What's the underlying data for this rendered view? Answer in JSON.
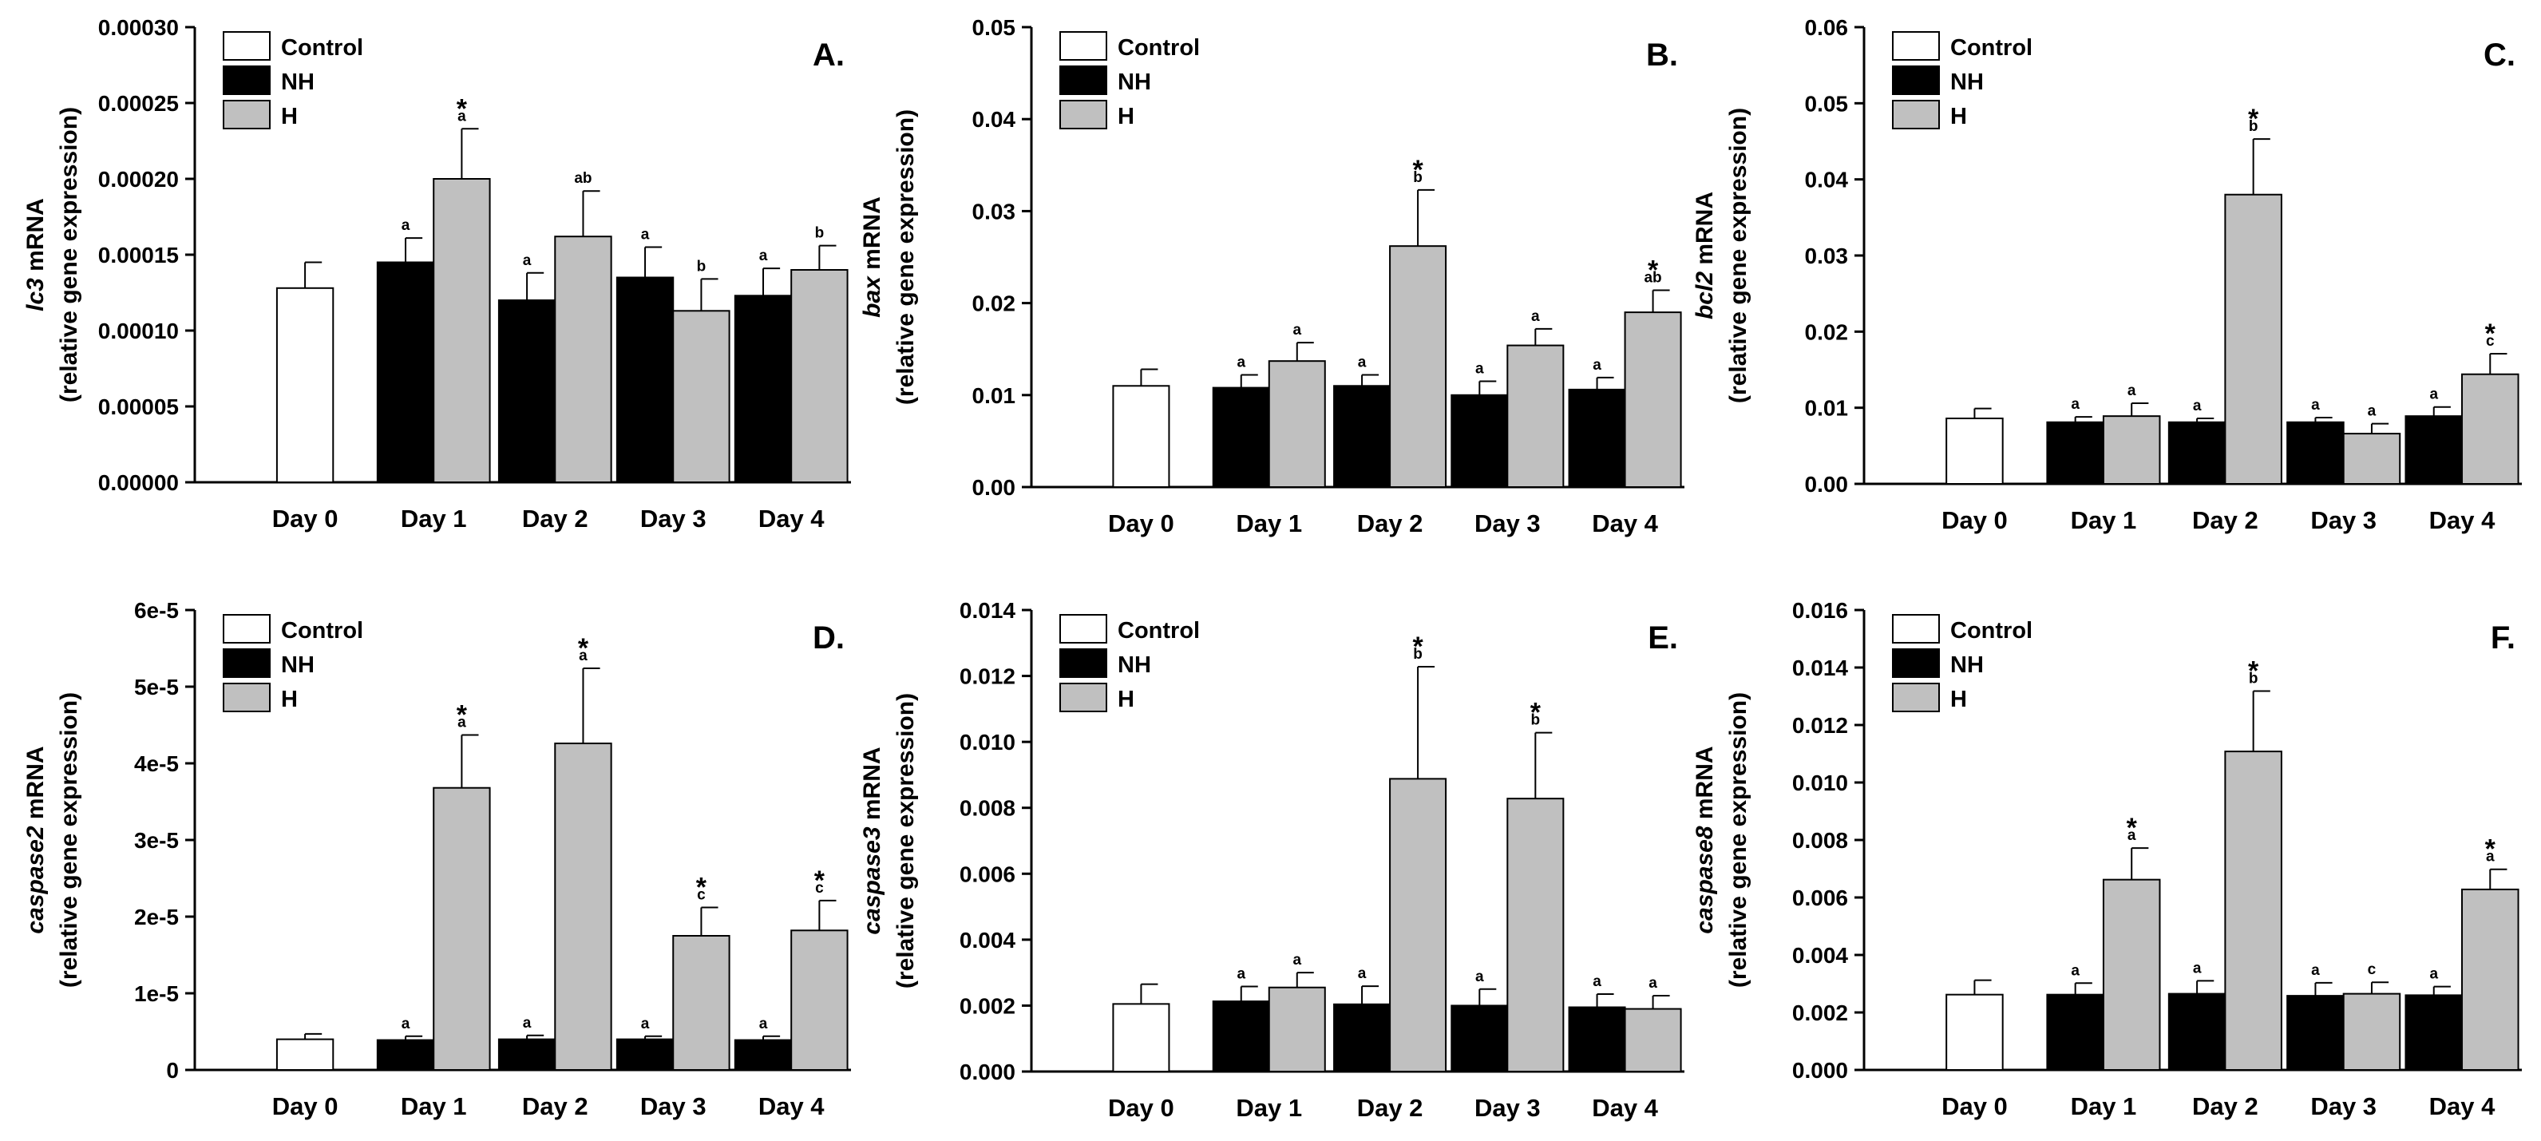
{
  "colors": {
    "control": "#ffffff",
    "NH": "#000000",
    "H": "#c0c0c0",
    "outline": "#000000"
  },
  "chart_data": [
    {
      "type": "bar",
      "panel": "A.",
      "gene": "lc3",
      "ylabel_suffix": " mRNA",
      "ylabel_sub": "(relative gene  expression)",
      "categories": [
        "Day 0",
        "Day 1",
        "Day 2",
        "Day 3",
        "Day 4"
      ],
      "ylim": [
        0,
        0.0003
      ],
      "yticks": [
        "0.00000",
        "0.00005",
        "0.00010",
        "0.00015",
        "0.00020",
        "0.00025",
        "0.00030"
      ],
      "legend": [
        "Control",
        "NH",
        "H"
      ],
      "series": [
        {
          "name": "Control",
          "values": [
            0.000128,
            null,
            null,
            null,
            null
          ],
          "errors": [
            1.7e-05,
            null,
            null,
            null,
            null
          ],
          "letters": [
            null,
            null,
            null,
            null,
            null
          ],
          "stars": [
            false,
            false,
            false,
            false,
            false
          ]
        },
        {
          "name": "NH",
          "values": [
            null,
            0.000145,
            0.00012,
            0.000135,
            0.000123
          ],
          "errors": [
            null,
            1.6e-05,
            1.8e-05,
            2e-05,
            1.8e-05
          ],
          "letters": [
            null,
            "a",
            "a",
            "a",
            "a"
          ],
          "stars": [
            false,
            false,
            false,
            false,
            false
          ]
        },
        {
          "name": "H",
          "values": [
            null,
            0.0002,
            0.000162,
            0.000113,
            0.00014
          ],
          "errors": [
            null,
            3.3e-05,
            3e-05,
            2.1e-05,
            1.6e-05
          ],
          "letters": [
            null,
            "a",
            "ab",
            "b",
            "b"
          ],
          "stars": [
            false,
            true,
            false,
            false,
            false
          ]
        }
      ]
    },
    {
      "type": "bar",
      "panel": "B.",
      "gene": "bax",
      "ylabel_suffix": " mRNA",
      "ylabel_sub": "(relative gene  expression)",
      "categories": [
        "Day 0",
        "Day 1",
        "Day 2",
        "Day 3",
        "Day 4"
      ],
      "ylim": [
        0,
        0.05
      ],
      "yticks": [
        "0.00",
        "0.01",
        "0.02",
        "0.03",
        "0.04",
        "0.05"
      ],
      "legend": [
        "Control",
        "NH",
        "H"
      ],
      "series": [
        {
          "name": "Control",
          "values": [
            0.011,
            null,
            null,
            null,
            null
          ],
          "errors": [
            0.0018,
            null,
            null,
            null,
            null
          ],
          "letters": [
            null,
            null,
            null,
            null,
            null
          ],
          "stars": [
            false,
            false,
            false,
            false,
            false
          ]
        },
        {
          "name": "NH",
          "values": [
            null,
            0.0108,
            0.011,
            0.01,
            0.0106
          ],
          "errors": [
            null,
            0.0014,
            0.0012,
            0.0015,
            0.0013
          ],
          "letters": [
            null,
            "a",
            "a",
            "a",
            "a"
          ],
          "stars": [
            false,
            false,
            false,
            false,
            false
          ]
        },
        {
          "name": "H",
          "values": [
            null,
            0.0137,
            0.0262,
            0.0154,
            0.019
          ],
          "errors": [
            null,
            0.002,
            0.0061,
            0.0018,
            0.0024
          ],
          "letters": [
            null,
            "a",
            "b",
            "a",
            "ab"
          ],
          "stars": [
            false,
            false,
            true,
            false,
            true
          ]
        }
      ]
    },
    {
      "type": "bar",
      "panel": "C.",
      "gene": "bcl2",
      "ylabel_suffix": " mRNA",
      "ylabel_sub": "(relative gene  expression)",
      "categories": [
        "Day 0",
        "Day 1",
        "Day 2",
        "Day 3",
        "Day 4"
      ],
      "ylim": [
        0,
        0.06
      ],
      "yticks": [
        "0.00",
        "0.01",
        "0.02",
        "0.03",
        "0.04",
        "0.05",
        "0.06"
      ],
      "legend": [
        "Control",
        "NH",
        "H"
      ],
      "series": [
        {
          "name": "Control",
          "values": [
            0.0086,
            null,
            null,
            null,
            null
          ],
          "errors": [
            0.0013,
            null,
            null,
            null,
            null
          ],
          "letters": [
            null,
            null,
            null,
            null,
            null
          ],
          "stars": [
            false,
            false,
            false,
            false,
            false
          ]
        },
        {
          "name": "NH",
          "values": [
            null,
            0.0081,
            0.0081,
            0.0081,
            0.0089
          ],
          "errors": [
            null,
            0.0007,
            0.0005,
            0.0006,
            0.0012
          ],
          "letters": [
            null,
            "a",
            "a",
            "a",
            "a"
          ],
          "stars": [
            false,
            false,
            false,
            false,
            false
          ]
        },
        {
          "name": "H",
          "values": [
            null,
            0.0089,
            0.038,
            0.0066,
            0.0144
          ],
          "errors": [
            null,
            0.0017,
            0.0073,
            0.0013,
            0.0027
          ],
          "letters": [
            null,
            "a",
            "b",
            "a",
            "c"
          ],
          "stars": [
            false,
            false,
            true,
            false,
            true
          ]
        }
      ]
    },
    {
      "type": "bar",
      "panel": "D.",
      "gene": "caspase2",
      "ylabel_suffix": " mRNA",
      "ylabel_sub": "(relative gene  expression)",
      "categories": [
        "Day 0",
        "Day 1",
        "Day 2",
        "Day 3",
        "Day 4"
      ],
      "ylim": [
        0,
        6e-05
      ],
      "yticks": [
        "0",
        "1e-5",
        "2e-5",
        "3e-5",
        "4e-5",
        "5e-5",
        "6e-5"
      ],
      "legend": [
        "Control",
        "NH",
        "H"
      ],
      "series": [
        {
          "name": "Control",
          "values": [
            4e-06,
            null,
            null,
            null,
            null
          ],
          "errors": [
            7e-07,
            null,
            null,
            null,
            null
          ],
          "letters": [
            null,
            null,
            null,
            null,
            null
          ],
          "stars": [
            false,
            false,
            false,
            false,
            false
          ]
        },
        {
          "name": "NH",
          "values": [
            null,
            3.9e-06,
            4e-06,
            4e-06,
            3.9e-06
          ],
          "errors": [
            null,
            5e-07,
            5e-07,
            4e-07,
            5e-07
          ],
          "letters": [
            null,
            "a",
            "a",
            "a",
            "a"
          ],
          "stars": [
            false,
            false,
            false,
            false,
            false
          ]
        },
        {
          "name": "H",
          "values": [
            null,
            3.68e-05,
            4.26e-05,
            1.75e-05,
            1.82e-05
          ],
          "errors": [
            null,
            6.9e-06,
            9.8e-06,
            3.7e-06,
            3.9e-06
          ],
          "letters": [
            null,
            "a",
            "a",
            "c",
            "c"
          ],
          "stars": [
            false,
            true,
            true,
            true,
            true
          ]
        }
      ]
    },
    {
      "type": "bar",
      "panel": "E.",
      "gene": "caspase3",
      "ylabel_suffix": " mRNA",
      "ylabel_sub": "(relative gene  expression)",
      "categories": [
        "Day 0",
        "Day 1",
        "Day 2",
        "Day 3",
        "Day 4"
      ],
      "ylim": [
        0,
        0.014
      ],
      "yticks": [
        "0.000",
        "0.002",
        "0.004",
        "0.006",
        "0.008",
        "0.010",
        "0.012",
        "0.014"
      ],
      "legend": [
        "Control",
        "NH",
        "H"
      ],
      "series": [
        {
          "name": "Control",
          "values": [
            0.00205,
            null,
            null,
            null,
            null
          ],
          "errors": [
            0.0006,
            null,
            null,
            null,
            null
          ],
          "letters": [
            null,
            null,
            null,
            null,
            null
          ],
          "stars": [
            false,
            false,
            false,
            false,
            false
          ]
        },
        {
          "name": "NH",
          "values": [
            null,
            0.00213,
            0.00204,
            0.002,
            0.00195
          ],
          "errors": [
            null,
            0.00045,
            0.00055,
            0.0005,
            0.0004
          ],
          "letters": [
            null,
            "a",
            "a",
            "a",
            "a"
          ],
          "stars": [
            false,
            false,
            false,
            false,
            false
          ]
        },
        {
          "name": "H",
          "values": [
            null,
            0.00255,
            0.00888,
            0.00828,
            0.0019
          ],
          "errors": [
            null,
            0.00045,
            0.0034,
            0.002,
            0.0004
          ],
          "letters": [
            null,
            "a",
            "b",
            "b",
            "a"
          ],
          "stars": [
            false,
            false,
            true,
            true,
            false
          ]
        }
      ]
    },
    {
      "type": "bar",
      "panel": "F.",
      "gene": "caspase8",
      "ylabel_suffix": " mRNA",
      "ylabel_sub": "(relative gene  expression)",
      "categories": [
        "Day 0",
        "Day 1",
        "Day 2",
        "Day 3",
        "Day 4"
      ],
      "ylim": [
        0,
        0.016
      ],
      "yticks": [
        "0.000",
        "0.002",
        "0.004",
        "0.006",
        "0.008",
        "0.010",
        "0.012",
        "0.014",
        "0.016"
      ],
      "legend": [
        "Control",
        "NH",
        "H"
      ],
      "series": [
        {
          "name": "Control",
          "values": [
            0.00262,
            null,
            null,
            null,
            null
          ],
          "errors": [
            0.0005,
            null,
            null,
            null,
            null
          ],
          "letters": [
            null,
            null,
            null,
            null,
            null
          ],
          "stars": [
            false,
            false,
            false,
            false,
            false
          ]
        },
        {
          "name": "NH",
          "values": [
            null,
            0.00262,
            0.00265,
            0.00258,
            0.0026
          ],
          "errors": [
            null,
            0.0004,
            0.00045,
            0.00045,
            0.0003
          ],
          "letters": [
            null,
            "a",
            "a",
            "a",
            "a"
          ],
          "stars": [
            false,
            false,
            false,
            false,
            false
          ]
        },
        {
          "name": "H",
          "values": [
            null,
            0.00662,
            0.01108,
            0.00265,
            0.00628
          ],
          "errors": [
            null,
            0.0011,
            0.0021,
            0.0004,
            0.0007
          ],
          "letters": [
            null,
            "a",
            "b",
            "c",
            "a"
          ],
          "stars": [
            false,
            true,
            true,
            false,
            true
          ]
        }
      ]
    }
  ]
}
